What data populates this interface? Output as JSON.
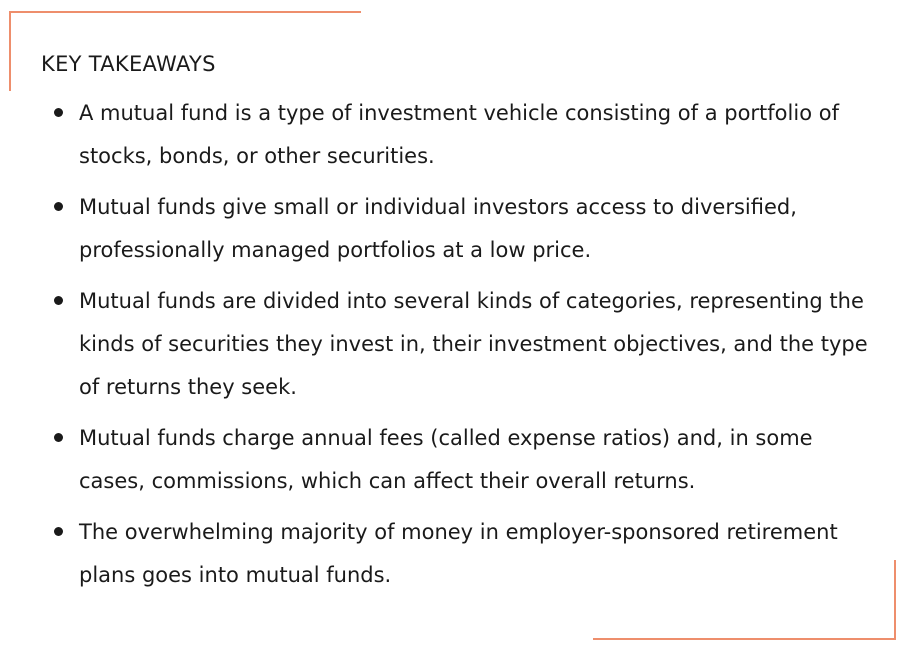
{
  "callout": {
    "accent_color": "#ee8e6c",
    "heading": "KEY TAKEAWAYS",
    "items": [
      {
        "text": "A mutual fund is a type of investment vehicle consisting of a portfolio of stocks, bonds, or other securities."
      },
      {
        "text": "Mutual funds give small or individual investors access to diversified, professionally managed portfolios at a low price."
      },
      {
        "text": "Mutual funds are divided into several kinds of categories, representing the kinds of securities they invest in, their investment objectives, and the type of returns they seek."
      },
      {
        "text": "Mutual funds charge annual fees (called expense ratios) and, in some cases, commissions, which can affect their overall returns."
      },
      {
        "text": "The overwhelming majority of money in employer-sponsored retirement plans goes into mutual funds."
      }
    ]
  }
}
